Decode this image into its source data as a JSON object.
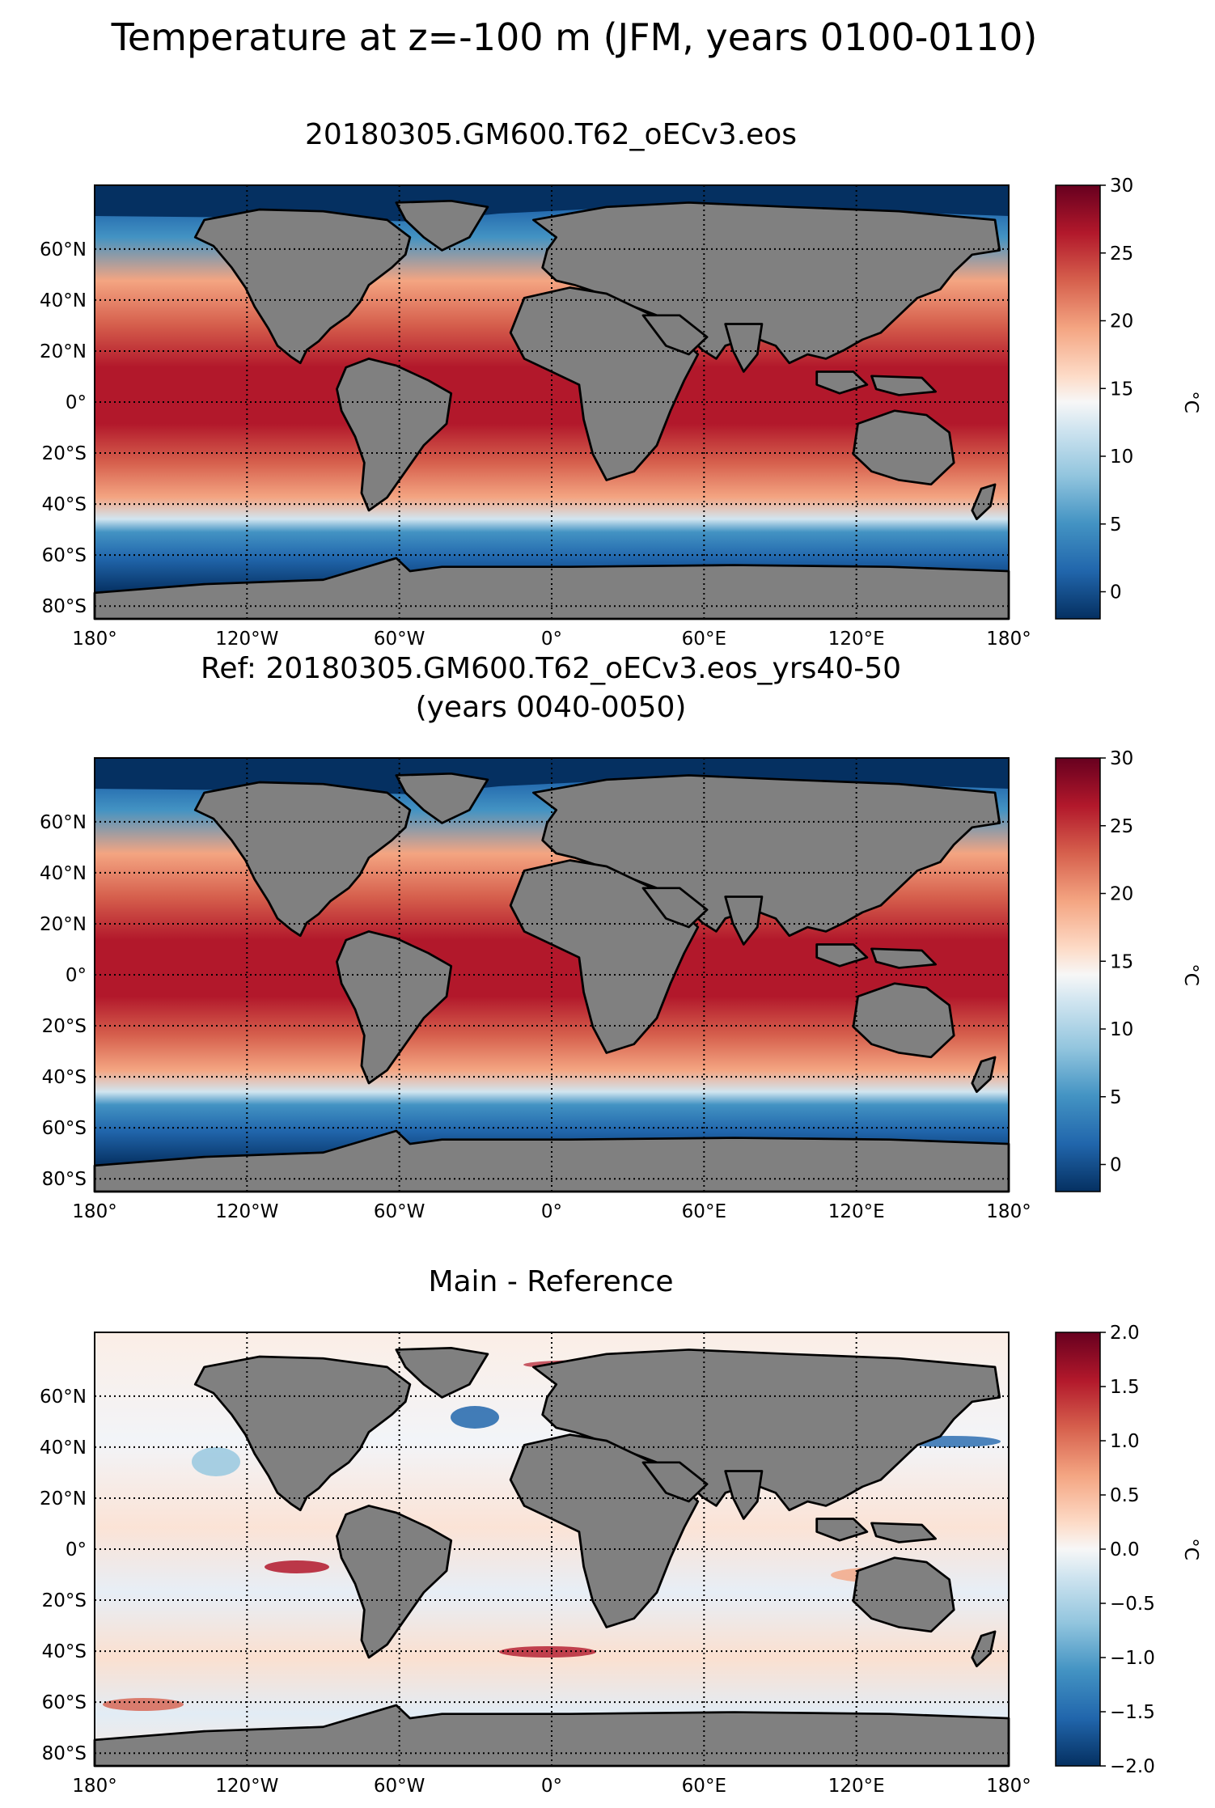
{
  "figure": {
    "title": "Temperature at z=-100 m (JFM, years 0100-0110)"
  },
  "panels": [
    {
      "title_lines": [
        "20180305.GM600.T62_oECv3.eos"
      ],
      "colorbar": {
        "label": "°C",
        "min": -2,
        "max": 30,
        "ticks": [
          "0",
          "5",
          "10",
          "15",
          "20",
          "25",
          "30"
        ],
        "tick_values": [
          0,
          5,
          10,
          15,
          20,
          25,
          30
        ]
      },
      "kind": "field"
    },
    {
      "title_lines": [
        "Ref: 20180305.GM600.T62_oECv3.eos_yrs40-50",
        "(years 0040-0050)"
      ],
      "colorbar": {
        "label": "°C",
        "min": -2,
        "max": 30,
        "ticks": [
          "0",
          "5",
          "10",
          "15",
          "20",
          "25",
          "30"
        ],
        "tick_values": [
          0,
          5,
          10,
          15,
          20,
          25,
          30
        ]
      },
      "kind": "field"
    },
    {
      "title_lines": [
        "Main - Reference"
      ],
      "colorbar": {
        "label": "°C",
        "min": -2.0,
        "max": 2.0,
        "ticks": [
          "2.0",
          "1.5",
          "1.0",
          "0.5",
          "0.0",
          "−0.5",
          "−1.0",
          "−1.5",
          "−2.0"
        ],
        "tick_values": [
          2.0,
          1.5,
          1.0,
          0.5,
          0.0,
          -0.5,
          -1.0,
          -1.5,
          -2.0
        ]
      },
      "kind": "diff"
    }
  ],
  "axes": {
    "lon_labels": [
      "180°",
      "120°W",
      "60°W",
      "0°",
      "60°E",
      "120°E",
      "180°"
    ],
    "lon_values": [
      -180,
      -120,
      -60,
      0,
      60,
      120,
      180
    ],
    "lat_labels": [
      "60°N",
      "40°N",
      "20°N",
      "0°",
      "20°S",
      "40°S",
      "60°S",
      "80°S"
    ],
    "lat_values": [
      60,
      40,
      20,
      0,
      -20,
      -40,
      -60,
      -80
    ],
    "lat_range": [
      -85,
      85
    ]
  },
  "colors": {
    "land": "#808080",
    "coast": "#000000",
    "cmap_low": "#053061",
    "cmap_mid": "#f7f7f7",
    "cmap_high": "#67001f"
  }
}
